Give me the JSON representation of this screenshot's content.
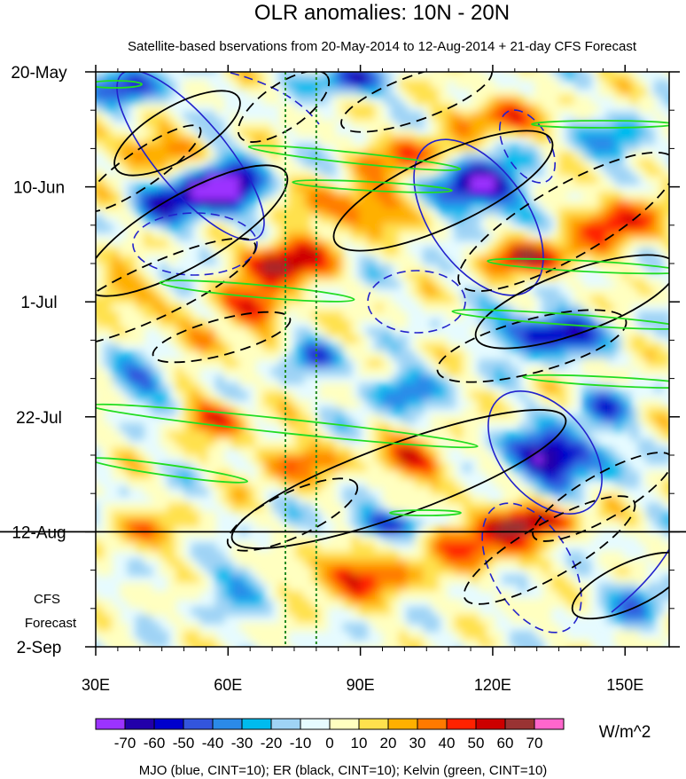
{
  "chart_data": {
    "type": "heatmap",
    "title": "OLR anomalies: 10N - 20N",
    "subtitle": "Satellite-based bservations from 20-May-2014 to 12-Aug-2014 + 21-day CFS Forecast",
    "x_axis": {
      "range": [
        30,
        160
      ],
      "ticks": [
        {
          "value": 30,
          "label": "30E"
        },
        {
          "value": 60,
          "label": "60E"
        },
        {
          "value": 90,
          "label": "90E"
        },
        {
          "value": 120,
          "label": "120E"
        },
        {
          "value": 150,
          "label": "150E"
        }
      ]
    },
    "y_axis": {
      "range_days": [
        0,
        105
      ],
      "ticks": [
        {
          "day": 0,
          "label": "20-May"
        },
        {
          "day": 21,
          "label": "10-Jun"
        },
        {
          "day": 42,
          "label": "1-Jul"
        },
        {
          "day": 63,
          "label": "22-Jul"
        },
        {
          "day": 84,
          "label": "12-Aug"
        },
        {
          "day": 105,
          "label": "2-Sep"
        }
      ]
    },
    "forecast_start": "12-Aug",
    "forecast_label": [
      "CFS",
      "Forecast"
    ],
    "colorbar": {
      "unit": "W/m^2",
      "levels": [
        -70,
        -60,
        -50,
        -40,
        -30,
        -20,
        -10,
        0,
        10,
        20,
        30,
        40,
        50,
        60,
        70
      ],
      "labels": [
        "-70",
        "-60",
        "-50",
        "-40",
        "-30",
        "-20",
        "-10",
        "0",
        "10",
        "20",
        "30",
        "40",
        "50",
        "60",
        "70"
      ],
      "colors": [
        "#9c33ff",
        "#2200aa",
        "#0000cc",
        "#3355dd",
        "#2b8ae8",
        "#00bbee",
        "#9fd3f5",
        "#e6fbff",
        "#ffffc0",
        "#ffe14d",
        "#ffb000",
        "#ff7a00",
        "#ff2200",
        "#cc0000",
        "#993333",
        "#ff66cc"
      ]
    },
    "reference_lines": [
      {
        "lon": 73,
        "style": "dotted",
        "color": "#228b22"
      },
      {
        "lon": 80,
        "style": "dotted",
        "color": "#228b22"
      }
    ],
    "footer": "MJO (blue, CINT=10); ER (black, CINT=10); Kelvin (green, CINT=10)"
  }
}
